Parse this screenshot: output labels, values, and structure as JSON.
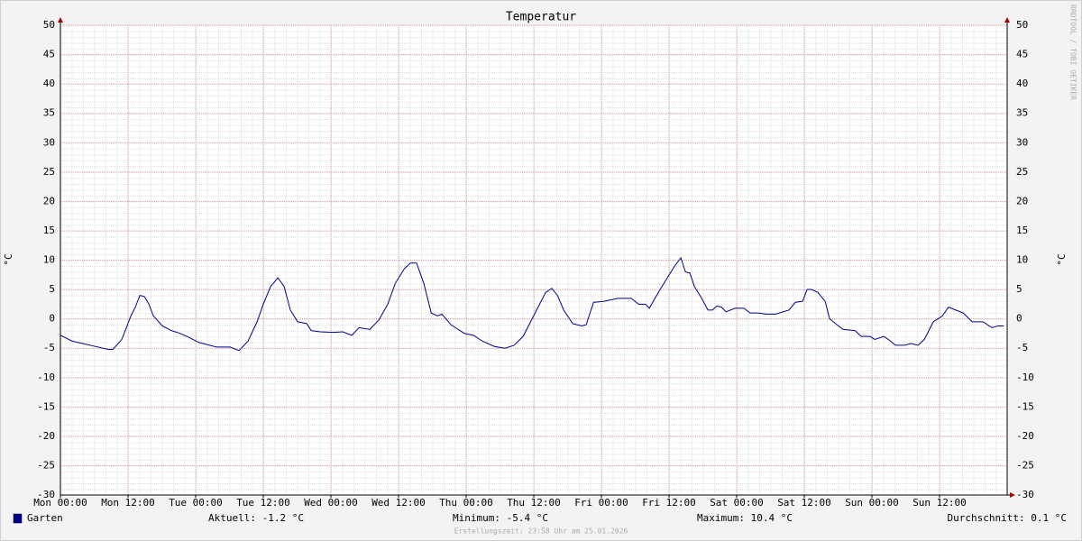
{
  "chart_data": {
    "type": "line",
    "title": "Temperatur",
    "y_label": "°C",
    "watermark": "RRDTOOL / TOBI OETIKER",
    "footer": "Erstellungszeit: 23:58 Uhr am 25.01.2026",
    "stats": [
      "Aktuell: -1.2 °C",
      "Minimum: -5.4 °C",
      "Maximum: 10.4 °C",
      "Durchschnitt: 0.1 °C"
    ],
    "grid": true,
    "xlim": [
      0,
      168
    ],
    "xticks": [
      {
        "value": 0,
        "label": "Mon 00:00"
      },
      {
        "value": 12,
        "label": "Mon 12:00"
      },
      {
        "value": 24,
        "label": "Tue 00:00"
      },
      {
        "value": 36,
        "label": "Tue 12:00"
      },
      {
        "value": 48,
        "label": "Wed 00:00"
      },
      {
        "value": 60,
        "label": "Wed 12:00"
      },
      {
        "value": 72,
        "label": "Thu 00:00"
      },
      {
        "value": 84,
        "label": "Thu 12:00"
      },
      {
        "value": 96,
        "label": "Fri 00:00"
      },
      {
        "value": 108,
        "label": "Fri 12:00"
      },
      {
        "value": 120,
        "label": "Sat 00:00"
      },
      {
        "value": 132,
        "label": "Sat 12:00"
      },
      {
        "value": 144,
        "label": "Sun 00:00"
      },
      {
        "value": 156,
        "label": "Sun 12:00"
      }
    ],
    "ylim": [
      -30,
      50
    ],
    "yticks": [
      -30,
      -25,
      -20,
      -15,
      -10,
      -5,
      0,
      5,
      10,
      15,
      20,
      25,
      30,
      35,
      40,
      45,
      50
    ],
    "x": [
      0,
      2.1,
      5.3,
      8.5,
      9.3,
      10.9,
      11.7,
      12.5,
      13.3,
      14.1,
      14.9,
      15.7,
      16.5,
      18.1,
      19.7,
      21.3,
      22.9,
      24.5,
      27.7,
      30.1,
      31.7,
      33.3,
      34.9,
      36,
      37.3,
      38.6,
      39.7,
      40.8,
      42.1,
      43.7,
      44.5,
      46.1,
      48.5,
      50.1,
      51.7,
      53,
      54.9,
      56.5,
      58.1,
      59.4,
      61,
      62.1,
      63.2,
      64.5,
      65.8,
      66.9,
      67.7,
      69.3,
      71.7,
      73.3,
      74.9,
      77,
      78.9,
      80.5,
      82.1,
      83.7,
      85.3,
      86.1,
      87.2,
      88.2,
      89.3,
      90.9,
      92.5,
      93.3,
      94.6,
      96.5,
      98.9,
      101.3,
      102.6,
      103.8,
      104.5,
      106.1,
      107.7,
      109,
      110.1,
      110.9,
      111.7,
      112.5,
      113.8,
      114.9,
      115.7,
      116.5,
      117.3,
      118.1,
      119.7,
      121.3,
      122.4,
      123.7,
      125.3,
      126.9,
      129.3,
      130.4,
      131.7,
      132.5,
      133.3,
      134.4,
      135.7,
      136.5,
      137.8,
      138.9,
      141,
      142.1,
      143.7,
      144.5,
      146.1,
      146.9,
      148.2,
      149.8,
      150.9,
      152.2,
      153.3,
      154.9,
      156.5,
      157.6,
      158.9,
      160.2,
      161.8,
      163.7,
      165.3,
      166.4,
      167.4
    ],
    "series": [
      {
        "name": "Garten",
        "color": "#00008b",
        "values": [
          -2.8,
          -3.8,
          -4.5,
          -5.2,
          -5.2,
          -3.5,
          -1.5,
          0.5,
          2,
          4,
          3.8,
          2.5,
          0.5,
          -1.2,
          -2,
          -2.5,
          -3.2,
          -4,
          -4.8,
          -4.8,
          -5.4,
          -3.8,
          -0.5,
          2.5,
          5.5,
          7,
          5.5,
          1.5,
          -0.5,
          -0.8,
          -2,
          -2.2,
          -2.3,
          -2.2,
          -2.8,
          -1.5,
          -1.8,
          -0.2,
          2.5,
          6,
          8.5,
          9.5,
          9.5,
          6,
          1,
          0.5,
          0.8,
          -1,
          -2.5,
          -2.8,
          -3.8,
          -4.7,
          -5,
          -4.5,
          -3,
          0,
          3,
          4.5,
          5.2,
          4,
          1.5,
          -0.8,
          -1.2,
          -1,
          2.8,
          3,
          3.5,
          3.5,
          2.5,
          2.5,
          1.8,
          4.5,
          7,
          9,
          10.4,
          8,
          7.8,
          5.5,
          3.5,
          1.5,
          1.5,
          2.2,
          2,
          1.2,
          1.8,
          1.8,
          1,
          1,
          0.8,
          0.8,
          1.5,
          2.8,
          3,
          5,
          5,
          4.5,
          3,
          0,
          -1,
          -1.8,
          -2,
          -3,
          -3,
          -3.5,
          -3,
          -3.5,
          -4.5,
          -4.5,
          -4.2,
          -4.5,
          -3.5,
          -0.5,
          0.5,
          2,
          1.5,
          1,
          -0.5,
          -0.5,
          -1.5,
          -1.2,
          -1.2
        ]
      }
    ]
  }
}
